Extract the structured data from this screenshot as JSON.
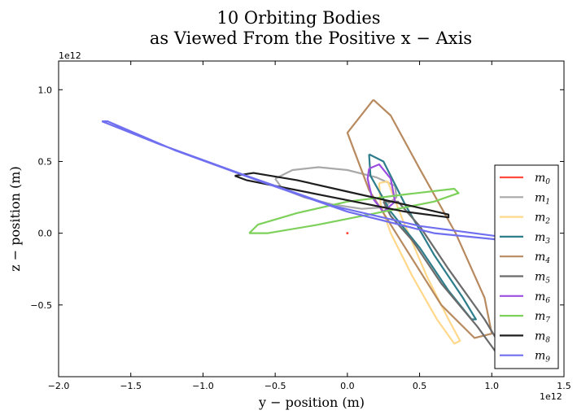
{
  "chart_data": {
    "type": "line",
    "title": [
      "10 Orbiting Bodies",
      "as Viewed From the Positive x − Axis"
    ],
    "xlabel": "y − position (m)",
    "ylabel": "z − position (m)",
    "x_offset_label": "1e12",
    "y_offset_label": "1e12",
    "xlim": [
      -2.0,
      1.5
    ],
    "ylim": [
      -1.0,
      1.2
    ],
    "xticks": [
      -2.0,
      -1.5,
      -1.0,
      -0.5,
      0.0,
      0.5,
      1.0,
      1.5
    ],
    "xtick_labels": [
      "−2.0",
      "−1.5",
      "−1.0",
      "−0.5",
      "0.0",
      "0.5",
      "1.0",
      "1.5"
    ],
    "yticks": [
      -0.5,
      0.0,
      0.5,
      1.0
    ],
    "ytick_labels": [
      "−0.5",
      "0.0",
      "0.5",
      "1.0"
    ],
    "grid": false,
    "legend_position": "lower-right",
    "series": [
      {
        "name": "m0",
        "color": "#ff4a3d",
        "points": [
          [
            0.0,
            0.0
          ]
        ]
      },
      {
        "name": "m1",
        "color": "#a9a9a9",
        "points": [
          [
            -0.5,
            0.38
          ],
          [
            -0.38,
            0.44
          ],
          [
            -0.2,
            0.46
          ],
          [
            0.0,
            0.44
          ],
          [
            0.2,
            0.39
          ],
          [
            0.33,
            0.33
          ],
          [
            0.34,
            0.25
          ],
          [
            0.25,
            0.18
          ],
          [
            0.1,
            0.17
          ],
          [
            -0.1,
            0.2
          ],
          [
            -0.3,
            0.25
          ],
          [
            -0.45,
            0.31
          ],
          [
            -0.5,
            0.38
          ]
        ]
      },
      {
        "name": "m2",
        "color": "#ffd88a",
        "points": [
          [
            0.22,
            0.35
          ],
          [
            0.28,
            0.36
          ],
          [
            0.38,
            0.1
          ],
          [
            0.55,
            -0.3
          ],
          [
            0.7,
            -0.6
          ],
          [
            0.78,
            -0.75
          ],
          [
            0.74,
            -0.77
          ],
          [
            0.62,
            -0.6
          ],
          [
            0.45,
            -0.3
          ],
          [
            0.3,
            0.0
          ],
          [
            0.23,
            0.2
          ],
          [
            0.22,
            0.35
          ]
        ]
      },
      {
        "name": "m3",
        "color": "#2e7d8c",
        "points": [
          [
            0.15,
            0.55
          ],
          [
            0.25,
            0.5
          ],
          [
            0.4,
            0.2
          ],
          [
            0.6,
            -0.15
          ],
          [
            0.8,
            -0.45
          ],
          [
            0.89,
            -0.6
          ],
          [
            0.86,
            -0.6
          ],
          [
            0.7,
            -0.4
          ],
          [
            0.5,
            -0.1
          ],
          [
            0.3,
            0.15
          ],
          [
            0.16,
            0.4
          ],
          [
            0.15,
            0.55
          ]
        ]
      },
      {
        "name": "m4",
        "color": "#b88a5f",
        "points": [
          [
            0.18,
            0.93
          ],
          [
            0.3,
            0.82
          ],
          [
            0.5,
            0.45
          ],
          [
            0.75,
            0.0
          ],
          [
            0.95,
            -0.45
          ],
          [
            1.0,
            -0.7
          ],
          [
            0.88,
            -0.73
          ],
          [
            0.65,
            -0.5
          ],
          [
            0.4,
            -0.1
          ],
          [
            0.15,
            0.3
          ],
          [
            0.0,
            0.7
          ],
          [
            0.18,
            0.93
          ]
        ]
      },
      {
        "name": "m5",
        "color": "#6b6b6b",
        "points": [
          [
            0.25,
            0.22
          ],
          [
            0.35,
            0.22
          ],
          [
            0.5,
            0.05
          ],
          [
            0.7,
            -0.25
          ],
          [
            0.95,
            -0.6
          ],
          [
            1.1,
            -0.85
          ],
          [
            1.08,
            -0.9
          ],
          [
            0.9,
            -0.65
          ],
          [
            0.65,
            -0.35
          ],
          [
            0.45,
            -0.05
          ],
          [
            0.3,
            0.12
          ],
          [
            0.25,
            0.22
          ]
        ]
      },
      {
        "name": "m6",
        "color": "#9b4ee0",
        "points": [
          [
            0.15,
            0.45
          ],
          [
            0.22,
            0.48
          ],
          [
            0.3,
            0.38
          ],
          [
            0.33,
            0.22
          ],
          [
            0.25,
            0.15
          ],
          [
            0.17,
            0.25
          ],
          [
            0.14,
            0.38
          ],
          [
            0.15,
            0.45
          ]
        ]
      },
      {
        "name": "m7",
        "color": "#7dd15a",
        "points": [
          [
            -0.68,
            0.0
          ],
          [
            -0.62,
            0.06
          ],
          [
            -0.35,
            0.14
          ],
          [
            0.0,
            0.22
          ],
          [
            0.4,
            0.27
          ],
          [
            0.74,
            0.31
          ],
          [
            0.77,
            0.28
          ],
          [
            0.6,
            0.22
          ],
          [
            0.2,
            0.14
          ],
          [
            -0.2,
            0.06
          ],
          [
            -0.55,
            -0.0
          ],
          [
            -0.68,
            0.0
          ]
        ]
      },
      {
        "name": "m8",
        "color": "#1e1e1e",
        "points": [
          [
            -0.78,
            0.4
          ],
          [
            -0.65,
            0.42
          ],
          [
            -0.35,
            0.37
          ],
          [
            0.0,
            0.29
          ],
          [
            0.4,
            0.2
          ],
          [
            0.7,
            0.13
          ],
          [
            0.7,
            0.11
          ],
          [
            0.4,
            0.15
          ],
          [
            0.0,
            0.23
          ],
          [
            -0.4,
            0.31
          ],
          [
            -0.7,
            0.37
          ],
          [
            -0.78,
            0.4
          ]
        ]
      },
      {
        "name": "m9",
        "color": "#6f6ff0",
        "points": [
          [
            -1.7,
            0.78
          ],
          [
            -1.66,
            0.78
          ],
          [
            -1.2,
            0.58
          ],
          [
            -0.6,
            0.36
          ],
          [
            0.0,
            0.15
          ],
          [
            0.6,
            0.0
          ],
          [
            1.1,
            -0.05
          ],
          [
            1.03,
            -0.02
          ],
          [
            0.5,
            0.05
          ],
          [
            -0.1,
            0.19
          ],
          [
            -0.7,
            0.4
          ],
          [
            -1.3,
            0.62
          ],
          [
            -1.7,
            0.78
          ]
        ]
      }
    ]
  }
}
